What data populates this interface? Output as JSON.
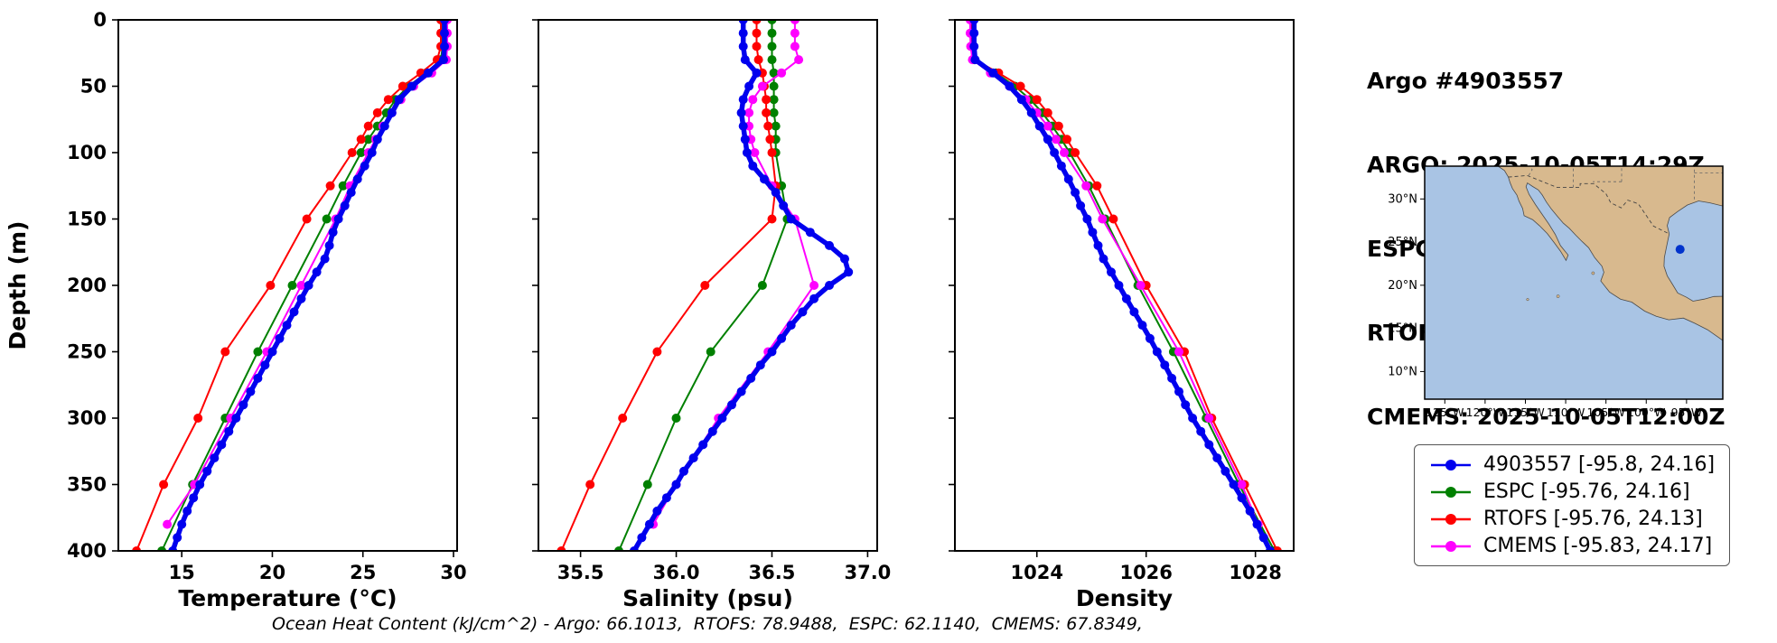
{
  "info": {
    "lines": [
      "Argo #4903557",
      "ARGO: 2025-10-05T14:29Z",
      "ESPC : 2025-10-05T15:00Z",
      "RTOFS: 2025-10-05T12:00Z",
      "CMEMS: 2025-10-05T12:00Z"
    ]
  },
  "caption": "Ocean Heat Content (kJ/cm^2) - Argo: 66.1013,  RTOFS: 78.9488,  ESPC: 62.1140,  CMEMS: 67.8349,",
  "legend": {
    "items": [
      {
        "label": "4903557 [-95.8, 24.16]",
        "color": "#0000ee"
      },
      {
        "label": "ESPC [-95.76, 24.16]",
        "color": "#008000"
      },
      {
        "label": "RTOFS [-95.76, 24.13]",
        "color": "#ff0000"
      },
      {
        "label": "CMEMS [-95.83, 24.17]",
        "color": "#ff00ff"
      }
    ]
  },
  "map": {
    "lon_tick_values": [
      -125,
      -120,
      -115,
      -110,
      -105,
      -100,
      -95
    ],
    "lon_tick_labels": [
      "125°W",
      "120°W",
      "115°W",
      "110°W",
      "105°W",
      "100°W",
      "95°W"
    ],
    "lat_tick_values": [
      30,
      25,
      20,
      15,
      10
    ],
    "lat_tick_labels": [
      "30°N",
      "25°N",
      "20°N",
      "15°N",
      "10°N"
    ],
    "marker": {
      "lon": -95.8,
      "lat": 24.16,
      "color": "#0033cc"
    },
    "colors": {
      "ocean": "#a9c4e4",
      "land": "#d8b98e",
      "coast": "#4a4a4a"
    }
  },
  "chart_data": [
    {
      "type": "line",
      "id": "temperature",
      "xlabel": "Temperature (°C)",
      "ylabel": "Depth (m)",
      "xlim": [
        11.5,
        30.2
      ],
      "ylim": [
        400,
        0
      ],
      "xticks": [
        15,
        20,
        25,
        30
      ],
      "xtick_labels": [
        "15",
        "20",
        "25",
        "30"
      ],
      "yticks": [
        0,
        50,
        100,
        150,
        200,
        250,
        300,
        350,
        400
      ],
      "grid": false,
      "series": [
        {
          "name": "4903557",
          "color": "#0000ee",
          "z": 4,
          "depths": [
            0,
            10,
            20,
            30,
            40,
            50,
            60,
            70,
            80,
            90,
            100,
            110,
            120,
            130,
            140,
            150,
            160,
            170,
            180,
            190,
            200,
            210,
            220,
            230,
            240,
            250,
            260,
            270,
            280,
            290,
            300,
            310,
            320,
            330,
            340,
            350,
            360,
            370,
            380,
            390,
            400
          ],
          "values": [
            29.5,
            29.5,
            29.5,
            29.45,
            28.6,
            27.7,
            27.0,
            26.6,
            26.2,
            25.8,
            25.5,
            25.1,
            24.7,
            24.35,
            24.0,
            23.65,
            23.35,
            23.15,
            22.9,
            22.45,
            22.0,
            21.6,
            21.2,
            20.8,
            20.4,
            20.0,
            19.6,
            19.2,
            18.8,
            18.4,
            18.0,
            17.6,
            17.2,
            16.8,
            16.4,
            16.0,
            15.65,
            15.3,
            15.0,
            14.75,
            14.5
          ]
        },
        {
          "name": "ESPC",
          "color": "#008000",
          "z": 1,
          "depths": [
            0,
            10,
            20,
            30,
            40,
            50,
            60,
            70,
            80,
            90,
            100,
            125,
            150,
            200,
            250,
            300,
            350,
            400
          ],
          "values": [
            29.4,
            29.4,
            29.4,
            29.3,
            28.5,
            27.5,
            26.8,
            26.3,
            25.8,
            25.3,
            24.9,
            23.9,
            23.0,
            21.1,
            19.2,
            17.4,
            15.6,
            13.9
          ]
        },
        {
          "name": "RTOFS",
          "color": "#ff0000",
          "z": 2,
          "depths": [
            0,
            10,
            20,
            30,
            40,
            50,
            60,
            70,
            80,
            90,
            100,
            125,
            150,
            200,
            250,
            300,
            350,
            400
          ],
          "values": [
            29.3,
            29.3,
            29.3,
            29.1,
            28.2,
            27.2,
            26.4,
            25.8,
            25.3,
            24.9,
            24.4,
            23.2,
            21.9,
            19.9,
            17.4,
            15.9,
            14.0,
            12.5
          ]
        },
        {
          "name": "CMEMS",
          "color": "#ff00ff",
          "z": 3,
          "depths": [
            0,
            10,
            20,
            30,
            40,
            50,
            60,
            70,
            80,
            90,
            100,
            125,
            150,
            200,
            250,
            300,
            350,
            380
          ],
          "values": [
            29.65,
            29.65,
            29.65,
            29.6,
            28.8,
            27.8,
            27.1,
            26.6,
            26.1,
            25.7,
            25.3,
            24.3,
            23.5,
            21.6,
            19.7,
            17.7,
            15.7,
            14.2
          ]
        }
      ]
    },
    {
      "type": "line",
      "id": "salinity",
      "xlabel": "Salinity (psu)",
      "xlim": [
        35.28,
        37.05
      ],
      "ylim": [
        400,
        0
      ],
      "xticks": [
        35.5,
        36.0,
        36.5,
        37.0
      ],
      "xtick_labels": [
        "35.5",
        "36.0",
        "36.5",
        "37.0"
      ],
      "yticks": [
        0,
        50,
        100,
        150,
        200,
        250,
        300,
        350,
        400
      ],
      "grid": false,
      "series": [
        {
          "name": "4903557",
          "color": "#0000ee",
          "z": 4,
          "depths": [
            0,
            10,
            20,
            30,
            40,
            50,
            60,
            70,
            80,
            90,
            100,
            110,
            120,
            130,
            140,
            150,
            160,
            170,
            180,
            190,
            200,
            210,
            220,
            230,
            240,
            250,
            260,
            270,
            280,
            290,
            300,
            310,
            320,
            330,
            340,
            350,
            360,
            370,
            380,
            390,
            400
          ],
          "values": [
            36.35,
            36.35,
            36.35,
            36.36,
            36.42,
            36.38,
            36.35,
            36.34,
            36.35,
            36.36,
            36.37,
            36.4,
            36.46,
            36.52,
            36.56,
            36.6,
            36.7,
            36.8,
            36.88,
            36.9,
            36.8,
            36.72,
            36.66,
            36.6,
            36.55,
            36.5,
            36.44,
            36.39,
            36.34,
            36.29,
            36.24,
            36.19,
            36.14,
            36.09,
            36.04,
            36.0,
            35.95,
            35.9,
            35.86,
            35.82,
            35.78
          ]
        },
        {
          "name": "ESPC",
          "color": "#008000",
          "z": 1,
          "depths": [
            0,
            10,
            20,
            30,
            40,
            50,
            60,
            70,
            80,
            90,
            100,
            125,
            150,
            200,
            250,
            300,
            350,
            400
          ],
          "values": [
            36.5,
            36.5,
            36.5,
            36.5,
            36.51,
            36.51,
            36.51,
            36.51,
            36.52,
            36.52,
            36.52,
            36.55,
            36.58,
            36.45,
            36.18,
            36.0,
            35.85,
            35.7
          ]
        },
        {
          "name": "RTOFS",
          "color": "#ff0000",
          "z": 2,
          "depths": [
            0,
            10,
            20,
            30,
            40,
            50,
            60,
            70,
            80,
            90,
            100,
            125,
            150,
            200,
            250,
            300,
            350,
            400
          ],
          "values": [
            36.42,
            36.42,
            36.42,
            36.43,
            36.45,
            36.46,
            36.47,
            36.47,
            36.48,
            36.49,
            36.5,
            36.52,
            36.5,
            36.15,
            35.9,
            35.72,
            35.55,
            35.4
          ]
        },
        {
          "name": "CMEMS",
          "color": "#ff00ff",
          "z": 3,
          "depths": [
            0,
            10,
            20,
            30,
            40,
            50,
            60,
            70,
            80,
            90,
            100,
            125,
            150,
            200,
            250,
            300,
            350,
            380
          ],
          "values": [
            36.62,
            36.62,
            36.62,
            36.64,
            36.55,
            36.45,
            36.4,
            36.38,
            36.38,
            36.39,
            36.41,
            36.5,
            36.62,
            36.72,
            36.48,
            36.22,
            36.0,
            35.88
          ]
        }
      ]
    },
    {
      "type": "line",
      "id": "density",
      "xlabel": "Density",
      "xlim": [
        1022.5,
        1028.7
      ],
      "ylim": [
        400,
        0
      ],
      "xticks": [
        1024,
        1026,
        1028
      ],
      "xtick_labels": [
        "1024",
        "1026",
        "1028"
      ],
      "yticks": [
        0,
        50,
        100,
        150,
        200,
        250,
        300,
        350,
        400
      ],
      "grid": false,
      "series": [
        {
          "name": "4903557",
          "color": "#0000ee",
          "z": 4,
          "depths": [
            0,
            10,
            20,
            30,
            40,
            50,
            60,
            70,
            80,
            90,
            100,
            110,
            120,
            130,
            140,
            150,
            160,
            170,
            180,
            190,
            200,
            210,
            220,
            230,
            240,
            250,
            260,
            270,
            280,
            290,
            300,
            310,
            320,
            330,
            340,
            350,
            360,
            370,
            380,
            390,
            400
          ],
          "values": [
            1022.85,
            1022.85,
            1022.85,
            1022.87,
            1023.2,
            1023.5,
            1023.72,
            1023.9,
            1024.05,
            1024.2,
            1024.32,
            1024.45,
            1024.58,
            1024.7,
            1024.8,
            1024.92,
            1025.02,
            1025.12,
            1025.22,
            1025.36,
            1025.5,
            1025.64,
            1025.78,
            1025.93,
            1026.07,
            1026.2,
            1026.34,
            1026.47,
            1026.6,
            1026.72,
            1026.85,
            1027.0,
            1027.15,
            1027.3,
            1027.45,
            1027.6,
            1027.75,
            1027.9,
            1028.03,
            1028.15,
            1028.27
          ]
        },
        {
          "name": "ESPC",
          "color": "#008000",
          "z": 1,
          "depths": [
            0,
            10,
            20,
            30,
            40,
            50,
            60,
            70,
            80,
            90,
            100,
            125,
            150,
            200,
            250,
            300,
            350,
            400
          ],
          "values": [
            1022.82,
            1022.82,
            1022.83,
            1022.86,
            1023.25,
            1023.6,
            1023.88,
            1024.1,
            1024.28,
            1024.45,
            1024.6,
            1024.95,
            1025.25,
            1025.85,
            1026.5,
            1027.1,
            1027.7,
            1028.35
          ]
        },
        {
          "name": "RTOFS",
          "color": "#ff0000",
          "z": 2,
          "depths": [
            0,
            10,
            20,
            30,
            40,
            50,
            60,
            70,
            80,
            90,
            100,
            125,
            150,
            200,
            250,
            300,
            350,
            400
          ],
          "values": [
            1022.8,
            1022.8,
            1022.81,
            1022.86,
            1023.3,
            1023.7,
            1024.0,
            1024.2,
            1024.4,
            1024.55,
            1024.7,
            1025.1,
            1025.4,
            1026.0,
            1026.7,
            1027.2,
            1027.8,
            1028.4
          ]
        },
        {
          "name": "CMEMS",
          "color": "#ff00ff",
          "z": 3,
          "depths": [
            0,
            10,
            20,
            30,
            40,
            50,
            60,
            70,
            80,
            90,
            100,
            125,
            150,
            200,
            250,
            300,
            350,
            380
          ],
          "values": [
            1022.78,
            1022.78,
            1022.79,
            1022.82,
            1023.15,
            1023.5,
            1023.8,
            1024.0,
            1024.2,
            1024.35,
            1024.5,
            1024.9,
            1025.2,
            1025.9,
            1026.6,
            1027.15,
            1027.75,
            1028.05
          ]
        }
      ]
    }
  ]
}
